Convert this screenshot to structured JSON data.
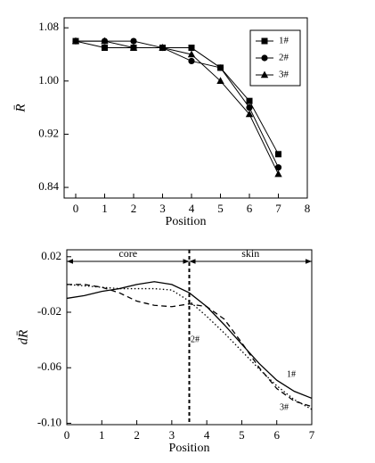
{
  "chart_data": [
    {
      "type": "line",
      "x_label": "Position",
      "y_label": "R̄",
      "x": [
        0,
        1,
        2,
        3,
        4,
        5,
        6,
        7
      ],
      "series": [
        {
          "name": "1#",
          "color": "#000000",
          "marker": "square",
          "style": "solid",
          "values": [
            1.06,
            1.05,
            1.05,
            1.05,
            1.05,
            1.02,
            0.97,
            0.89
          ]
        },
        {
          "name": "2#",
          "color": "#000000",
          "marker": "circle",
          "style": "solid",
          "values": [
            1.06,
            1.06,
            1.06,
            1.05,
            1.03,
            1.02,
            0.96,
            0.87
          ]
        },
        {
          "name": "3#",
          "color": "#000000",
          "marker": "triangle",
          "style": "solid",
          "values": [
            1.06,
            1.06,
            1.05,
            1.05,
            1.04,
            1.0,
            0.95,
            0.86
          ]
        }
      ],
      "xlim": [
        -0.4,
        8
      ],
      "xticks": [
        0,
        1,
        2,
        3,
        4,
        5,
        6,
        7,
        8
      ],
      "ylim": [
        0.824,
        1.095
      ],
      "yticks": [
        0.84,
        0.92,
        {
          "value": 1,
          "label": "1.00"
        },
        1.08
      ],
      "legend": "upper right"
    },
    {
      "type": "line",
      "x_label": "Position",
      "y_label": "dR̄",
      "x": [
        0,
        0.5,
        1,
        1.5,
        2,
        2.5,
        3,
        3.5,
        4,
        4.5,
        5,
        5.5,
        6,
        6.5,
        7
      ],
      "series": [
        {
          "name": "1#",
          "color": "#000000",
          "style": "solid",
          "values": [
            -0.01,
            -0.008,
            -0.005,
            -0.003,
            0.0,
            0.002,
            0.0,
            -0.006,
            -0.016,
            -0.029,
            -0.043,
            -0.057,
            -0.069,
            -0.077,
            -0.082
          ]
        },
        {
          "name": "2#",
          "color": "#000000",
          "style": "dotted",
          "values": [
            0.0,
            -0.001,
            -0.002,
            -0.003,
            -0.003,
            -0.003,
            -0.004,
            -0.012,
            -0.023,
            -0.035,
            -0.048,
            -0.061,
            -0.073,
            -0.083,
            -0.09
          ]
        },
        {
          "name": "3#",
          "color": "#000000",
          "style": "dashed",
          "values": [
            0.0,
            0.0,
            -0.002,
            -0.006,
            -0.012,
            -0.015,
            -0.016,
            -0.014,
            -0.016,
            -0.025,
            -0.042,
            -0.06,
            -0.075,
            -0.084,
            -0.088
          ]
        }
      ],
      "xlim": [
        0,
        7
      ],
      "xticks": [
        0,
        1,
        2,
        3,
        4,
        5,
        6,
        7
      ],
      "ylim": [
        -0.101,
        0.025
      ],
      "yticks": [
        0.02,
        -0.02,
        -0.06,
        {
          "value": -0.1,
          "label": "-0.10"
        }
      ],
      "vline": 3.5,
      "annotations": [
        "core",
        "skin"
      ]
    }
  ]
}
